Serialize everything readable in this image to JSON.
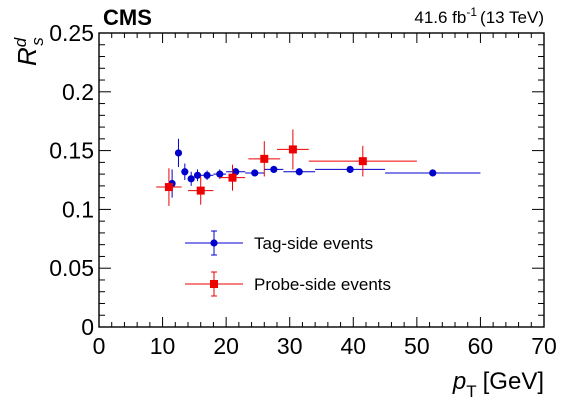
{
  "header": {
    "experiment": "CMS",
    "lumi": "41.6 fb",
    "lumi_exp": "-1",
    "energy": "(13 TeV)"
  },
  "chart_data": {
    "type": "scatter",
    "xlabel": "p",
    "xlabel_sub": "T",
    "xlabel_unit": "[GeV]",
    "ylabel": "R",
    "ylabel_sup": "d",
    "ylabel_sub": "s",
    "xlim": [
      0,
      70
    ],
    "ylim": [
      0,
      0.25
    ],
    "x_ticks": [
      0,
      10,
      20,
      30,
      40,
      50,
      60,
      70
    ],
    "x_tick_labels": [
      "0",
      "10",
      "20",
      "30",
      "40",
      "50",
      "60",
      "70"
    ],
    "y_ticks": [
      0,
      0.05,
      0.1,
      0.15,
      0.2,
      0.25
    ],
    "y_tick_labels": [
      "0",
      "0.05",
      "0.1",
      "0.15",
      "0.2",
      "0.25"
    ],
    "grid": false,
    "legend_position": "lower-left",
    "series": [
      {
        "name": "Tag-side events",
        "color": "#0000cc",
        "marker": "circle",
        "points": [
          {
            "x": 11.5,
            "xerr": 0.5,
            "y": 0.122,
            "yerr": 0.012
          },
          {
            "x": 12.5,
            "xerr": 0.5,
            "y": 0.148,
            "yerr": 0.012
          },
          {
            "x": 13.5,
            "xerr": 0.5,
            "y": 0.132,
            "yerr": 0.007
          },
          {
            "x": 14.5,
            "xerr": 0.5,
            "y": 0.126,
            "yerr": 0.006
          },
          {
            "x": 15.5,
            "xerr": 0.5,
            "y": 0.129,
            "yerr": 0.005
          },
          {
            "x": 17.0,
            "xerr": 1.0,
            "y": 0.129,
            "yerr": 0.004
          },
          {
            "x": 19.0,
            "xerr": 1.0,
            "y": 0.13,
            "yerr": 0.004
          },
          {
            "x": 21.5,
            "xerr": 1.5,
            "y": 0.132,
            "yerr": 0.003
          },
          {
            "x": 24.5,
            "xerr": 1.5,
            "y": 0.131,
            "yerr": 0.003
          },
          {
            "x": 27.5,
            "xerr": 1.5,
            "y": 0.134,
            "yerr": 0.003
          },
          {
            "x": 31.5,
            "xerr": 2.5,
            "y": 0.132,
            "yerr": 0.003
          },
          {
            "x": 39.5,
            "xerr": 5.5,
            "y": 0.134,
            "yerr": 0.003
          },
          {
            "x": 52.5,
            "xerr": 7.5,
            "y": 0.131,
            "yerr": 0.003
          }
        ]
      },
      {
        "name": "Probe-side events",
        "color": "#ee0000",
        "marker": "square",
        "points": [
          {
            "x": 11.0,
            "xerr": 2.0,
            "y": 0.119,
            "yerr": 0.016
          },
          {
            "x": 16.0,
            "xerr": 2.0,
            "y": 0.116,
            "yerr": 0.012
          },
          {
            "x": 21.0,
            "xerr": 2.0,
            "y": 0.127,
            "yerr": 0.011
          },
          {
            "x": 26.0,
            "xerr": 2.5,
            "y": 0.143,
            "yerr": 0.015
          },
          {
            "x": 30.5,
            "xerr": 2.5,
            "y": 0.151,
            "yerr": 0.017
          },
          {
            "x": 41.5,
            "xerr": 8.5,
            "y": 0.141,
            "yerr": 0.013
          }
        ]
      }
    ]
  }
}
